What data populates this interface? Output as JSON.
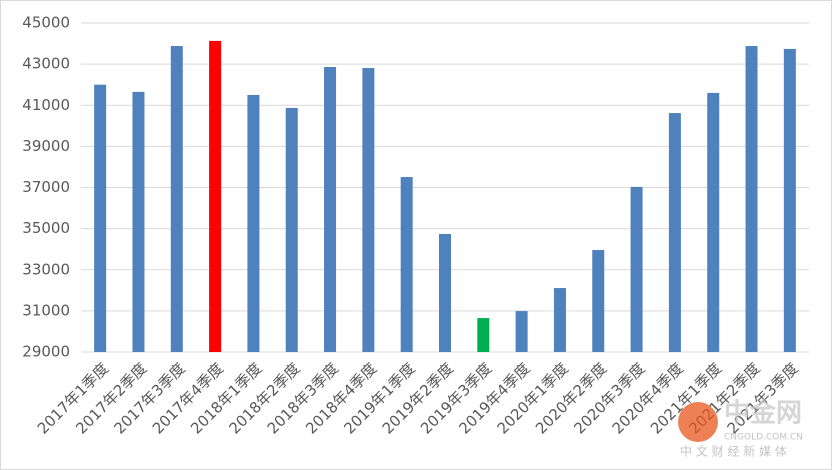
{
  "chart_data": {
    "type": "bar",
    "categories": [
      "2017年1季度",
      "2017年2季度",
      "2017年3季度",
      "2017年4季度",
      "2018年1季度",
      "2018年2季度",
      "2018年3季度",
      "2018年4季度",
      "2019年1季度",
      "2019年2季度",
      "2019年3季度",
      "2019年4季度",
      "2020年1季度",
      "2020年2季度",
      "2020年3季度",
      "2020年4季度",
      "2021年1季度",
      "2021年2季度",
      "2021年3季度"
    ],
    "values": [
      42000,
      41650,
      43880,
      44130,
      41500,
      40870,
      42860,
      42810,
      37510,
      34740,
      30650,
      30990,
      32110,
      33960,
      37030,
      40620,
      41600,
      43880,
      43740
    ],
    "colors": [
      "#4f81bd",
      "#4f81bd",
      "#4f81bd",
      "#ff0000",
      "#4f81bd",
      "#4f81bd",
      "#4f81bd",
      "#4f81bd",
      "#4f81bd",
      "#4f81bd",
      "#00b050",
      "#4f81bd",
      "#4f81bd",
      "#4f81bd",
      "#4f81bd",
      "#4f81bd",
      "#4f81bd",
      "#4f81bd",
      "#4f81bd"
    ],
    "ylim": [
      29000,
      45000
    ],
    "yticks": [
      29000,
      31000,
      33000,
      35000,
      37000,
      39000,
      41000,
      43000,
      45000
    ],
    "grid": true
  },
  "watermark": {
    "brand": "中金网",
    "site": "CNGOLD.COM.CN",
    "slogan": "中 文 财 经 新 媒 体"
  }
}
